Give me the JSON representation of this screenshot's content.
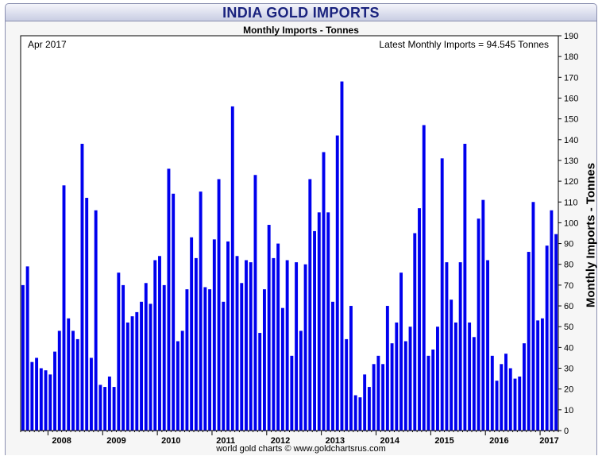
{
  "header": {
    "title": "INDIA GOLD IMPORTS",
    "subtitle": "Monthly Imports - Tonnes"
  },
  "footer": {
    "credit": "world gold charts © www.goldchartsrus.com"
  },
  "colors": {
    "bar": "#0000ee",
    "axis": "#000000",
    "plot_bg": "#ffffff",
    "title": "#1a237e"
  },
  "chart_data": {
    "type": "bar",
    "title": "INDIA GOLD IMPORTS",
    "subtitle": "Monthly Imports - Tonnes",
    "ylabel": "Monthly Imports - Tonnes",
    "xlabel": "",
    "date_label": "Apr 2017",
    "latest_label": "Latest Monthly Imports = 94.545 Tonnes",
    "ylim": [
      0,
      190
    ],
    "yticks": [
      0,
      10,
      20,
      30,
      40,
      50,
      60,
      70,
      80,
      90,
      100,
      110,
      120,
      130,
      140,
      150,
      160,
      170,
      180,
      190
    ],
    "grid": false,
    "start_month": "2007-07",
    "end_month": "2017-04",
    "year_labels": [
      "2008",
      "2009",
      "2010",
      "2011",
      "2012",
      "2013",
      "2014",
      "2015",
      "2016",
      "2017"
    ],
    "values": [
      70,
      79,
      33,
      35,
      30,
      29,
      27,
      38,
      48,
      118,
      54,
      48,
      44,
      138,
      112,
      35,
      106,
      22,
      21,
      26,
      21,
      76,
      70,
      52,
      55,
      57,
      62,
      71,
      61,
      82,
      84,
      70,
      126,
      114,
      43,
      48,
      68,
      93,
      83,
      115,
      69,
      68,
      92,
      121,
      62,
      91,
      156,
      84,
      71,
      82,
      81,
      123,
      47,
      68,
      99,
      83,
      90,
      59,
      82,
      36,
      81,
      48,
      80,
      121,
      96,
      105,
      134,
      105,
      62,
      142,
      168,
      44,
      60,
      17,
      16,
      27,
      21,
      32,
      36,
      32,
      60,
      42,
      52,
      76,
      43,
      50,
      95,
      107,
      147,
      36,
      39,
      50,
      131,
      81,
      63,
      52,
      81,
      138,
      52,
      45,
      102,
      111,
      82,
      36,
      24,
      32,
      37,
      30,
      25,
      26,
      42,
      86,
      110,
      53,
      54,
      89,
      106,
      94.545
    ]
  }
}
